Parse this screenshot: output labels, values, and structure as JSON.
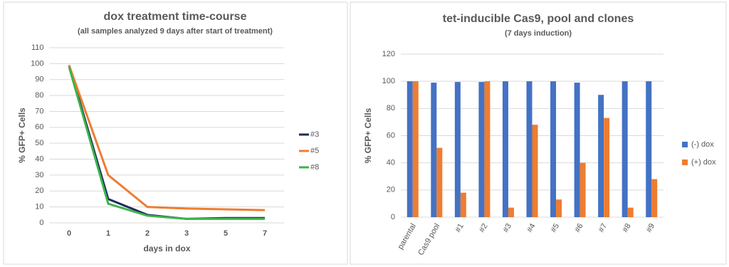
{
  "chart_data": [
    {
      "type": "line",
      "title": "dox treatment time-course",
      "subtitle": "(all samples analyzed 9 days after start of treatment)",
      "y_label": "% GFP+ Cells",
      "x_label": "days in dox",
      "categories": [
        "0",
        "1",
        "2",
        "3",
        "5",
        "7"
      ],
      "series": [
        {
          "name": "#3",
          "color": "#1f2a5c",
          "values": [
            99,
            15,
            5,
            2.5,
            3,
            3
          ]
        },
        {
          "name": "#5",
          "color": "#ed7d31",
          "values": [
            99,
            30,
            10,
            9,
            8.5,
            8
          ]
        },
        {
          "name": "#8",
          "color": "#3cb44b",
          "values": [
            98,
            12,
            4.5,
            2.5,
            2.5,
            2.5
          ]
        }
      ],
      "ylim": [
        0,
        110
      ],
      "yticks": [
        0,
        10,
        20,
        30,
        40,
        50,
        60,
        70,
        80,
        90,
        100,
        110
      ],
      "grid": true,
      "legend": "right"
    },
    {
      "type": "bar",
      "title": "tet-inducible Cas9, pool and clones",
      "subtitle": "(7 days induction)",
      "y_label": "% GFP+ Cells",
      "categories": [
        "parental",
        "Cas9 pool",
        "#1",
        "#2",
        "#3",
        "#4",
        "#5",
        "#6",
        "#7",
        "#8",
        "#9"
      ],
      "series": [
        {
          "name": "(-) dox",
          "color": "#4472c4",
          "values": [
            100,
            99,
            99.5,
            99.5,
            100,
            100,
            100,
            99,
            90,
            100,
            100
          ]
        },
        {
          "name": "(+) dox",
          "color": "#ed7d31",
          "values": [
            100,
            51,
            18,
            100,
            7,
            68,
            13,
            40,
            73,
            7,
            28
          ]
        }
      ],
      "ylim": [
        0,
        120
      ],
      "yticks": [
        0,
        20,
        40,
        60,
        80,
        100,
        120
      ],
      "grid": true,
      "legend": "right"
    }
  ]
}
